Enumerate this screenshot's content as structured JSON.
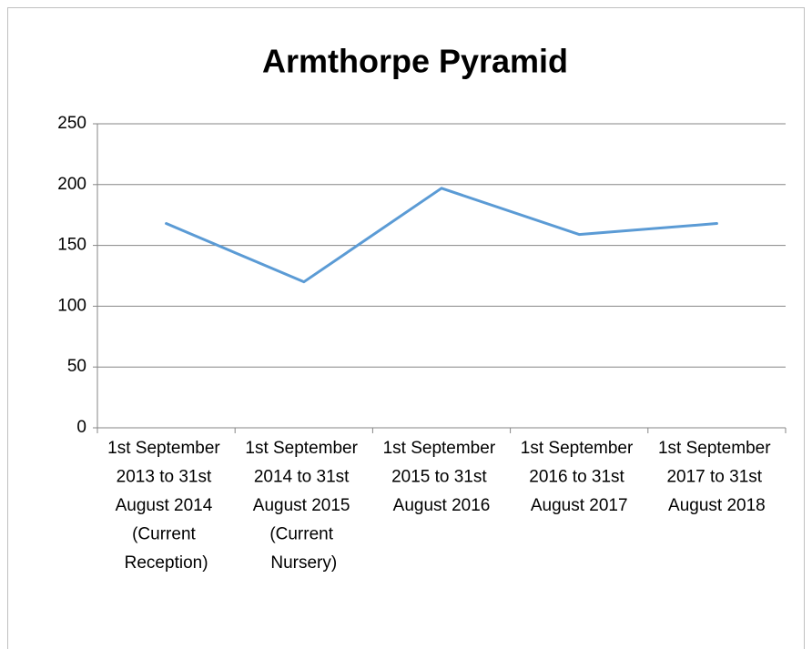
{
  "chart_data": {
    "type": "line",
    "title": "Armthorpe Pyramid",
    "categories": [
      "1st September 2013 to 31st August 2014 (Current Reception)",
      "1st September 2014 to 31st August 2015 (Current Nursery)",
      "1st September 2015 to 31st August 2016",
      "1st September 2016 to 31st August 2017",
      "1st September 2017 to 31st August 2018"
    ],
    "series": [
      {
        "name": "Armthorpe Pyramid",
        "color": "#5b9bd5",
        "values": [
          168,
          120,
          197,
          159,
          168
        ]
      }
    ],
    "ylim": [
      0,
      250
    ],
    "yticks": [
      0,
      50,
      100,
      150,
      200,
      250
    ],
    "grid": true
  }
}
